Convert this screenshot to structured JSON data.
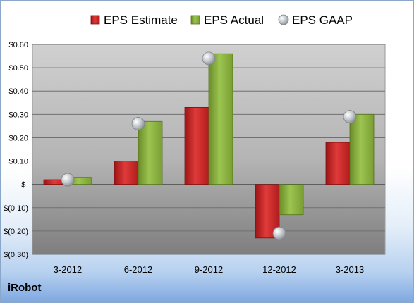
{
  "company": "iRobot",
  "colors": {
    "estimate": "#d42a2a",
    "actual": "#8cb440",
    "gaap": "#c4c8cc"
  },
  "chart_data": {
    "type": "bar",
    "categories": [
      "3-2012",
      "6-2012",
      "9-2012",
      "12-2012",
      "3-2013"
    ],
    "series": [
      {
        "name": "EPS Estimate",
        "values": [
          0.02,
          0.1,
          0.33,
          -0.23,
          0.18
        ]
      },
      {
        "name": "EPS Actual",
        "values": [
          0.03,
          0.27,
          0.56,
          -0.13,
          0.3
        ]
      },
      {
        "name": "EPS GAAP",
        "type": "scatter",
        "values": [
          0.02,
          0.26,
          0.54,
          -0.21,
          0.29
        ]
      }
    ],
    "ylim": [
      -0.3,
      0.6
    ],
    "yticks": [
      0.6,
      0.5,
      0.4,
      0.3,
      0.2,
      0.1,
      0,
      -0.1,
      -0.2,
      -0.3
    ],
    "ytick_labels": [
      "$0.60",
      "$0.50",
      "$0.40",
      "$0.30",
      "$0.20",
      "$0.10",
      "$-",
      "$(0.10)",
      "$(0.20)",
      "$(0.30)"
    ],
    "grid": true,
    "legend": "top"
  }
}
